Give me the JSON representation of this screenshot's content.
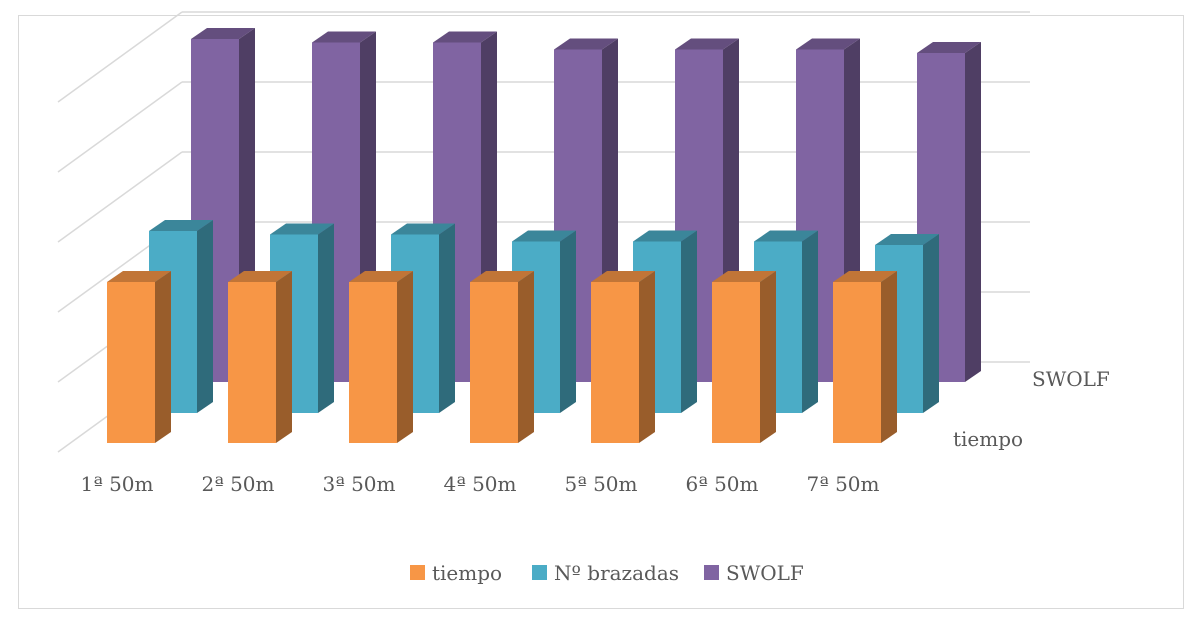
{
  "chart_data": {
    "type": "bar",
    "variant": "3d-column",
    "categories": [
      "1ª 50m",
      "2ª 50m",
      "3ª 50m",
      "4ª 50m",
      "5ª 50m",
      "6ª 50m",
      "7ª 50m"
    ],
    "series": [
      {
        "name": "tiempo",
        "color": "#f79646",
        "values": [
          46,
          46,
          46,
          46,
          46,
          46,
          46
        ]
      },
      {
        "name": "Nº brazadas",
        "color": "#4bacc6",
        "values": [
          52,
          51,
          51,
          49,
          49,
          49,
          48
        ]
      },
      {
        "name": "SWOLF",
        "color": "#8064a2",
        "values": [
          98,
          97,
          97,
          95,
          95,
          95,
          94
        ]
      }
    ],
    "depth_axis_labels": [
      "tiempo",
      "SWOLF"
    ],
    "ylim": [
      0,
      100
    ],
    "y_tick_step": 20,
    "grid": true,
    "legend_position": "bottom"
  }
}
